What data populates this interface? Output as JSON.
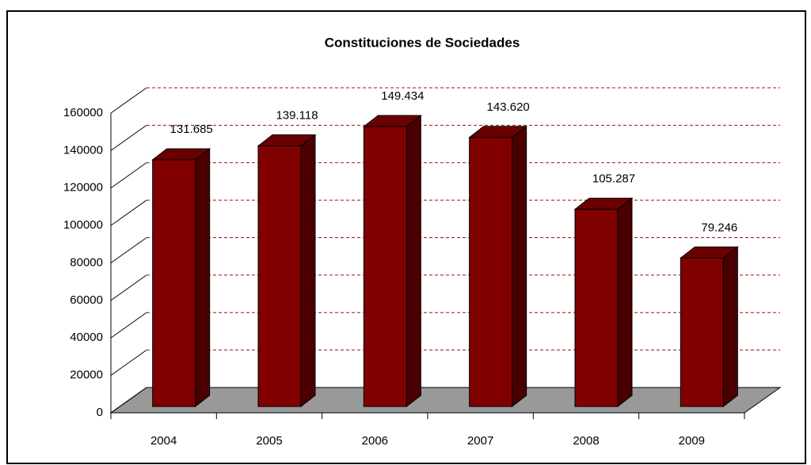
{
  "chart_data": {
    "type": "bar3d",
    "title": "Constituciones de Sociedades",
    "categories": [
      "2004",
      "2005",
      "2006",
      "2007",
      "2008",
      "2009"
    ],
    "values": [
      131685,
      139118,
      149434,
      143620,
      105287,
      79246
    ],
    "value_labels": [
      "131.685",
      "139.118",
      "149.434",
      "143.620",
      "105.287",
      "79.246"
    ],
    "color": "#800000",
    "ylim": [
      0,
      160000
    ],
    "yticks": [
      0,
      20000,
      40000,
      60000,
      80000,
      100000,
      120000,
      140000,
      160000
    ],
    "grid": true
  }
}
